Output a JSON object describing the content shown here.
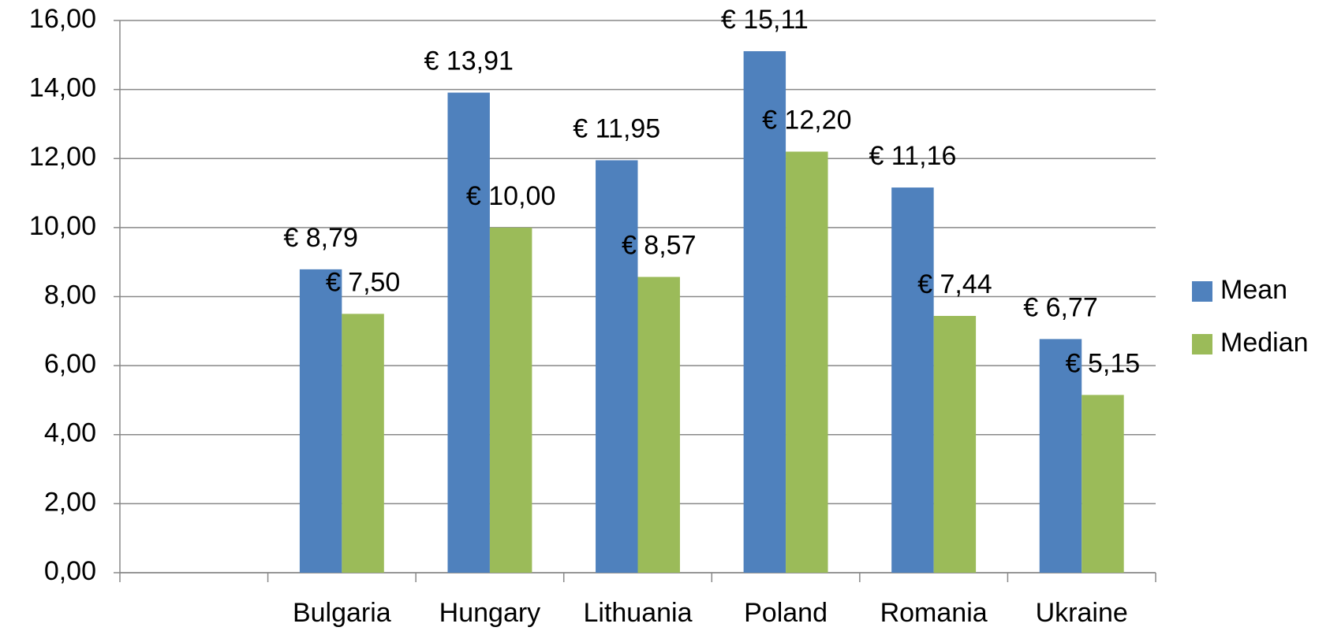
{
  "chart_data": {
    "type": "bar",
    "categories": [
      null,
      "Bulgaria",
      "Hungary",
      "Lithuania",
      "Poland",
      "Romania",
      "Ukraine"
    ],
    "series": [
      {
        "name": "Mean",
        "color": "#4f81bd",
        "values": [
          null,
          8.79,
          13.91,
          11.95,
          15.11,
          11.16,
          6.77
        ],
        "value_labels": [
          null,
          "€ 8,79",
          "€ 13,91",
          "€ 11,95",
          "€ 15,11",
          "€ 11,16",
          "€ 6,77"
        ]
      },
      {
        "name": "Median",
        "color": "#9bbb59",
        "values": [
          null,
          7.5,
          10.0,
          8.57,
          12.2,
          7.44,
          5.15
        ],
        "value_labels": [
          null,
          "€ 7,50",
          "€ 10,00",
          "€ 8,57",
          "€ 12,20",
          "€ 7,44",
          "€ 5,15"
        ]
      }
    ],
    "ylim": [
      0,
      16
    ],
    "yticks": [
      {
        "value": 0,
        "label": "0,00"
      },
      {
        "value": 2,
        "label": "2,00"
      },
      {
        "value": 4,
        "label": "4,00"
      },
      {
        "value": 6,
        "label": "6,00"
      },
      {
        "value": 8,
        "label": "8,00"
      },
      {
        "value": 10,
        "label": "10,00"
      },
      {
        "value": 12,
        "label": "12,00"
      },
      {
        "value": 14,
        "label": "14,00"
      },
      {
        "value": 16,
        "label": "16,00"
      }
    ],
    "grid": true,
    "legend": "right"
  }
}
